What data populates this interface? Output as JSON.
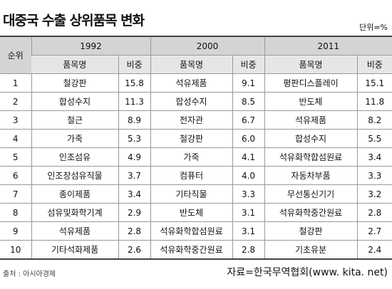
{
  "header": {
    "title": "대중국 수출 상위품목 변화",
    "unit": "단위=%"
  },
  "table": {
    "rank_header": "순위",
    "years": [
      "1992",
      "2000",
      "2011"
    ],
    "subheaders": [
      "품목명",
      "비중",
      "품목명",
      "비중",
      "품목명",
      "비중"
    ],
    "rows": [
      [
        1,
        "철강판",
        "15.8",
        "석유제품",
        "9.1",
        "평판디스플레이",
        "15.1"
      ],
      [
        2,
        "합성수지",
        "11.3",
        "합성수지",
        "8.5",
        "반도체",
        "11.8"
      ],
      [
        3,
        "철근",
        "8.9",
        "전자관",
        "6.7",
        "석유제품",
        "8.2"
      ],
      [
        4,
        "가죽",
        "5.3",
        "철강판",
        "6.0",
        "합성수지",
        "5.5"
      ],
      [
        5,
        "인조섬유",
        "4.9",
        "가죽",
        "4.1",
        "석유화학합섬원료",
        "3.4"
      ],
      [
        6,
        "인조장섬유직물",
        "3.7",
        "컴퓨터",
        "4.0",
        "자동차부품",
        "3.3"
      ],
      [
        7,
        "종이제품",
        "3.4",
        "기타직물",
        "3.3",
        "무선통신기기",
        "3.2"
      ],
      [
        8,
        "섬유및화학기계",
        "2.9",
        "반도체",
        "3.1",
        "석유화학중간원료",
        "2.8"
      ],
      [
        9,
        "석유제품",
        "2.8",
        "석유화학합섬원료",
        "3.1",
        "철강판",
        "2.7"
      ],
      [
        10,
        "기타석화제품",
        "2.6",
        "석유화학중간원료",
        "2.8",
        "기초유분",
        "2.4"
      ]
    ]
  },
  "footer": {
    "source": "출처 : 아시아경제",
    "data_source": "자료=한국무역협회(www. kita. net)"
  }
}
